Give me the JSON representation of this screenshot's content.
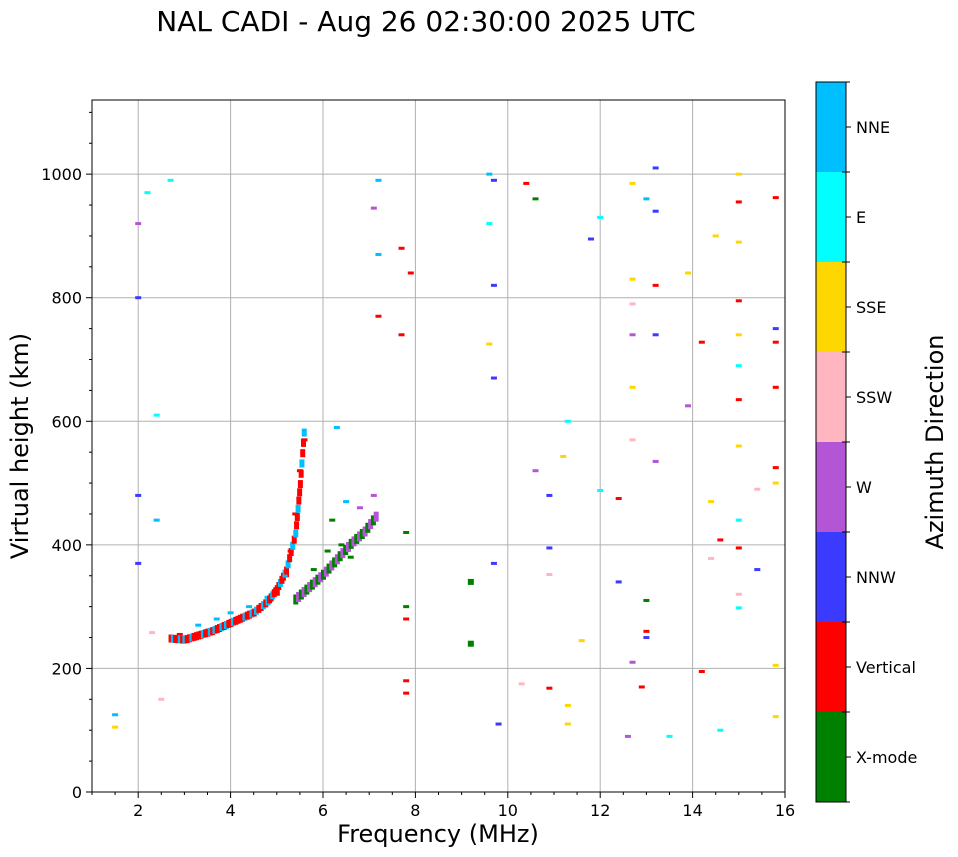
{
  "chart_data": {
    "type": "scatter",
    "title": "NAL CADI - Aug 26 02:30:00 2025 UTC",
    "xlabel": "Frequency (MHz)",
    "ylabel": "Virtual height (km)",
    "xlim": [
      1.0,
      16.0
    ],
    "ylim": [
      0,
      1120
    ],
    "xticks": [
      2,
      4,
      6,
      8,
      10,
      12,
      14,
      16
    ],
    "yticks": [
      0,
      200,
      400,
      600,
      800,
      1000
    ],
    "grid": true,
    "colorbar": {
      "label": "Azimuth Direction",
      "position": "right",
      "categories": [
        {
          "name": "X-mode",
          "color": "#008000"
        },
        {
          "name": "Vertical",
          "color": "#ff0000"
        },
        {
          "name": "NNW",
          "color": "#3b3bff"
        },
        {
          "name": "W",
          "color": "#b455d6"
        },
        {
          "name": "SSW",
          "color": "#ffb6c1"
        },
        {
          "name": "SSE",
          "color": "#ffd700"
        },
        {
          "name": "E",
          "color": "#00ffff"
        },
        {
          "name": "NNE",
          "color": "#00bfff"
        }
      ]
    },
    "trace": {
      "description": "F-layer O-mode echo trace with X-mode component",
      "o_mode_points": [
        [
          2.7,
          250
        ],
        [
          3.0,
          248
        ],
        [
          3.3,
          255
        ],
        [
          3.6,
          262
        ],
        [
          3.9,
          272
        ],
        [
          4.2,
          282
        ],
        [
          4.5,
          292
        ],
        [
          4.8,
          310
        ],
        [
          5.0,
          330
        ],
        [
          5.2,
          360
        ],
        [
          5.4,
          420
        ],
        [
          5.5,
          500
        ],
        [
          5.6,
          600
        ]
      ],
      "x_mode_points": [
        [
          5.4,
          310
        ],
        [
          5.7,
          330
        ],
        [
          6.0,
          350
        ],
        [
          6.3,
          375
        ],
        [
          6.6,
          400
        ],
        [
          6.9,
          420
        ],
        [
          7.2,
          450
        ]
      ]
    },
    "series": [
      {
        "name": "X-mode",
        "points": [
          [
            5.8,
            360
          ],
          [
            6.1,
            390
          ],
          [
            6.4,
            400
          ],
          [
            6.7,
            410
          ],
          [
            6.2,
            440
          ],
          [
            6.6,
            380
          ],
          [
            7.8,
            300
          ],
          [
            7.8,
            420
          ],
          [
            9.2,
            340
          ],
          [
            9.2,
            240
          ],
          [
            10.6,
            960
          ],
          [
            13.0,
            310
          ]
        ]
      },
      {
        "name": "Vertical",
        "points": [
          [
            2.9,
            255
          ],
          [
            3.2,
            250
          ],
          [
            3.5,
            258
          ],
          [
            3.8,
            266
          ],
          [
            4.1,
            276
          ],
          [
            4.4,
            288
          ],
          [
            4.7,
            300
          ],
          [
            5.0,
            320
          ],
          [
            5.2,
            350
          ],
          [
            5.3,
            390
          ],
          [
            5.4,
            450
          ],
          [
            5.5,
            520
          ],
          [
            5.6,
            570
          ],
          [
            7.2,
            770
          ],
          [
            7.7,
            880
          ],
          [
            7.7,
            740
          ],
          [
            7.9,
            840
          ],
          [
            7.8,
            180
          ],
          [
            7.8,
            160
          ],
          [
            7.8,
            280
          ],
          [
            10.4,
            985
          ],
          [
            10.9,
            168
          ],
          [
            12.4,
            475
          ],
          [
            12.9,
            170
          ],
          [
            13.2,
            820
          ],
          [
            14.2,
            195
          ],
          [
            14.2,
            728
          ],
          [
            14.6,
            408
          ],
          [
            15.0,
            955
          ],
          [
            15.0,
            795
          ],
          [
            15.0,
            635
          ],
          [
            15.0,
            395
          ],
          [
            15.8,
            962
          ],
          [
            15.8,
            655
          ],
          [
            15.8,
            525
          ],
          [
            15.8,
            728
          ],
          [
            13.0,
            260
          ]
        ]
      },
      {
        "name": "NNW",
        "points": [
          [
            2.0,
            480
          ],
          [
            2.0,
            370
          ],
          [
            2.0,
            800
          ],
          [
            9.7,
            990
          ],
          [
            9.7,
            820
          ],
          [
            9.7,
            670
          ],
          [
            9.8,
            110
          ],
          [
            9.7,
            370
          ],
          [
            10.9,
            480
          ],
          [
            10.9,
            395
          ],
          [
            11.8,
            895
          ],
          [
            12.4,
            340
          ],
          [
            13.2,
            1010
          ],
          [
            13.2,
            940
          ],
          [
            13.2,
            740
          ],
          [
            13.0,
            250
          ],
          [
            15.8,
            750
          ],
          [
            15.4,
            360
          ]
        ]
      },
      {
        "name": "W",
        "points": [
          [
            2.0,
            920
          ],
          [
            7.1,
            480
          ],
          [
            7.1,
            945
          ],
          [
            10.6,
            520
          ],
          [
            12.7,
            740
          ],
          [
            12.7,
            210
          ],
          [
            13.2,
            535
          ],
          [
            13.9,
            625
          ],
          [
            12.6,
            90
          ],
          [
            6.8,
            460
          ]
        ]
      },
      {
        "name": "SSW",
        "points": [
          [
            2.3,
            258
          ],
          [
            2.5,
            150
          ],
          [
            10.3,
            175
          ],
          [
            10.9,
            352
          ],
          [
            12.7,
            790
          ],
          [
            12.7,
            570
          ],
          [
            14.4,
            378
          ],
          [
            15.0,
            320
          ],
          [
            15.4,
            490
          ]
        ]
      },
      {
        "name": "SSE",
        "points": [
          [
            1.5,
            105
          ],
          [
            11.3,
            110
          ],
          [
            11.3,
            140
          ],
          [
            11.2,
            543
          ],
          [
            12.7,
            985
          ],
          [
            12.7,
            830
          ],
          [
            12.7,
            655
          ],
          [
            13.9,
            840
          ],
          [
            14.5,
            900
          ],
          [
            14.4,
            470
          ],
          [
            15.0,
            1000
          ],
          [
            15.0,
            890
          ],
          [
            15.0,
            740
          ],
          [
            15.0,
            560
          ],
          [
            15.8,
            500
          ],
          [
            15.8,
            205
          ],
          [
            15.8,
            122
          ],
          [
            9.6,
            725
          ],
          [
            11.6,
            245
          ]
        ]
      },
      {
        "name": "E",
        "points": [
          [
            2.2,
            970
          ],
          [
            2.4,
            610
          ],
          [
            9.6,
            920
          ],
          [
            11.3,
            600
          ],
          [
            12.0,
            930
          ],
          [
            12.0,
            488
          ],
          [
            13.5,
            90
          ],
          [
            14.6,
            100
          ],
          [
            15.0,
            690
          ],
          [
            15.0,
            440
          ],
          [
            15.0,
            298
          ],
          [
            2.7,
            990
          ]
        ]
      },
      {
        "name": "NNE",
        "points": [
          [
            1.5,
            125
          ],
          [
            2.4,
            440
          ],
          [
            3.3,
            270
          ],
          [
            3.7,
            280
          ],
          [
            4.0,
            290
          ],
          [
            4.4,
            300
          ],
          [
            4.8,
            315
          ],
          [
            5.1,
            340
          ],
          [
            6.3,
            590
          ],
          [
            6.5,
            470
          ],
          [
            7.2,
            990
          ],
          [
            7.2,
            870
          ],
          [
            9.6,
            1000
          ],
          [
            13.0,
            960
          ]
        ]
      }
    ]
  }
}
